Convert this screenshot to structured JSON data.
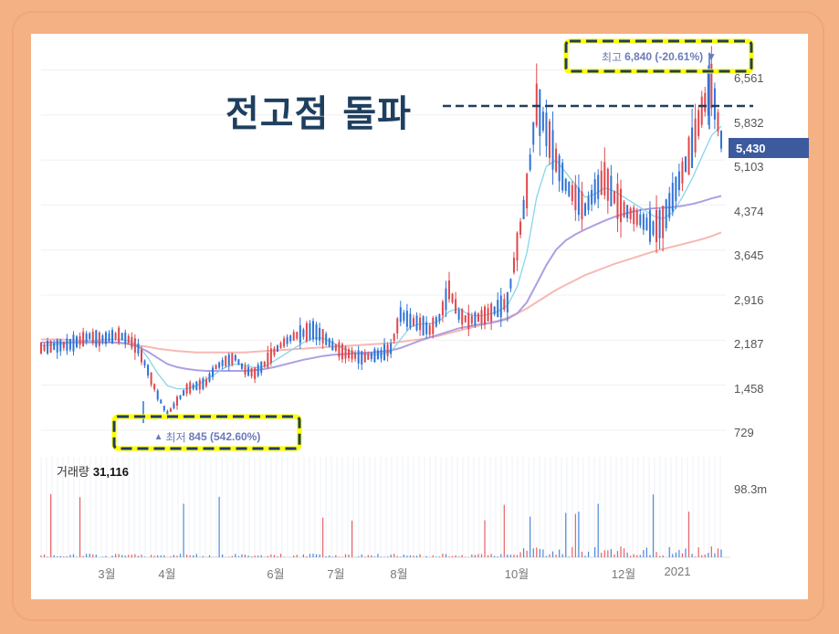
{
  "headline": "전고점 돌파",
  "high_marker": {
    "label": "최고",
    "value": "6,840 (-20.61%)",
    "arrow": "▼"
  },
  "low_marker": {
    "label": "최저",
    "value": "845 (542.60%)",
    "arrow": "▲"
  },
  "volume_label": {
    "label": "거래량",
    "value": "31,116"
  },
  "volume_axis_max": "98.3m",
  "current_price": "5,430",
  "colors": {
    "up": "#e0474c",
    "down": "#2f73d6",
    "ma_short": "#7fd3ea",
    "ma_mid": "#a99be0",
    "ma_long": "#f5b5b0",
    "frame": "#f4b183",
    "highlight_border": "#ffff00",
    "highlight_dash": "#1f3f5f",
    "headline": "#1f3f5f"
  },
  "chart_data": {
    "type": "line",
    "title": "",
    "y_ticks": [
      "6,561",
      "5,832",
      "5,103",
      "4,374",
      "3,645",
      "2,916",
      "2,187",
      "1,458",
      "729"
    ],
    "y_tick_values": [
      6561,
      5832,
      5103,
      4374,
      3645,
      2916,
      2187,
      1458,
      729
    ],
    "x_ticks": [
      "3월",
      "4월",
      "6월",
      "7월",
      "8월",
      "10월",
      "12월",
      "2021"
    ],
    "ylim": [
      300,
      7100
    ],
    "high": 6840,
    "low": 845,
    "current": 5430,
    "series": [
      {
        "name": "price",
        "values": [
          2060,
          2080,
          2100,
          2120,
          2180,
          2250,
          2200,
          2230,
          2270,
          2200,
          2050,
          1700,
          1300,
          980,
          1200,
          1400,
          1450,
          1500,
          1750,
          1850,
          1900,
          1700,
          1650,
          1800,
          2000,
          2150,
          2250,
          2300,
          2350,
          2250,
          2100,
          2000,
          1950,
          1900,
          1930,
          1960,
          2050,
          2600,
          2500,
          2450,
          2350,
          2550,
          3000,
          2600,
          2500,
          2550,
          2600,
          2700,
          2800,
          3700,
          4600,
          6000,
          5600,
          5100,
          4700,
          4500,
          4300,
          4600,
          4800,
          4500,
          4300,
          4200,
          4100,
          4000,
          4100,
          4500,
          4900,
          5300,
          5900,
          6300,
          5430
        ]
      },
      {
        "name": "ma-short",
        "values": [
          2100,
          2110,
          2120,
          2140,
          2160,
          2180,
          2190,
          2200,
          2200,
          2180,
          2100,
          1900,
          1650,
          1450,
          1400,
          1400,
          1450,
          1550,
          1650,
          1750,
          1800,
          1780,
          1740,
          1760,
          1850,
          1950,
          2050,
          2150,
          2220,
          2220,
          2150,
          2060,
          2000,
          1960,
          1950,
          1960,
          2000,
          2200,
          2400,
          2450,
          2450,
          2500,
          2650,
          2700,
          2600,
          2580,
          2600,
          2650,
          2750,
          3050,
          3600,
          4500,
          5000,
          5100,
          4900,
          4700,
          4500,
          4550,
          4650,
          4600,
          4500,
          4400,
          4300,
          4200,
          4150,
          4250,
          4500,
          4800,
          5150,
          5500,
          5650
        ]
      },
      {
        "name": "ma-mid",
        "values": [
          2150,
          2150,
          2150,
          2150,
          2150,
          2150,
          2150,
          2150,
          2150,
          2130,
          2080,
          2000,
          1900,
          1800,
          1750,
          1720,
          1700,
          1690,
          1690,
          1690,
          1690,
          1690,
          1700,
          1720,
          1750,
          1790,
          1830,
          1870,
          1900,
          1930,
          1950,
          1960,
          1970,
          1980,
          1990,
          2000,
          2020,
          2060,
          2120,
          2180,
          2230,
          2280,
          2330,
          2380,
          2410,
          2440,
          2460,
          2490,
          2530,
          2620,
          2800,
          3100,
          3400,
          3650,
          3800,
          3900,
          3980,
          4050,
          4120,
          4180,
          4230,
          4270,
          4300,
          4320,
          4330,
          4340,
          4360,
          4390,
          4430,
          4480,
          4520
        ]
      },
      {
        "name": "ma-long",
        "values": [
          2200,
          2200,
          2200,
          2190,
          2180,
          2170,
          2160,
          2150,
          2140,
          2120,
          2100,
          2080,
          2050,
          2030,
          2010,
          2000,
          1990,
          1990,
          1990,
          1990,
          1990,
          1990,
          2000,
          2010,
          2020,
          2030,
          2040,
          2050,
          2060,
          2070,
          2080,
          2090,
          2100,
          2110,
          2120,
          2130,
          2140,
          2160,
          2180,
          2200,
          2230,
          2260,
          2300,
          2340,
          2380,
          2420,
          2460,
          2500,
          2550,
          2620,
          2700,
          2800,
          2900,
          3000,
          3080,
          3160,
          3240,
          3300,
          3360,
          3420,
          3470,
          3520,
          3570,
          3620,
          3660,
          3700,
          3740,
          3780,
          3820,
          3870,
          3930
        ]
      }
    ]
  }
}
